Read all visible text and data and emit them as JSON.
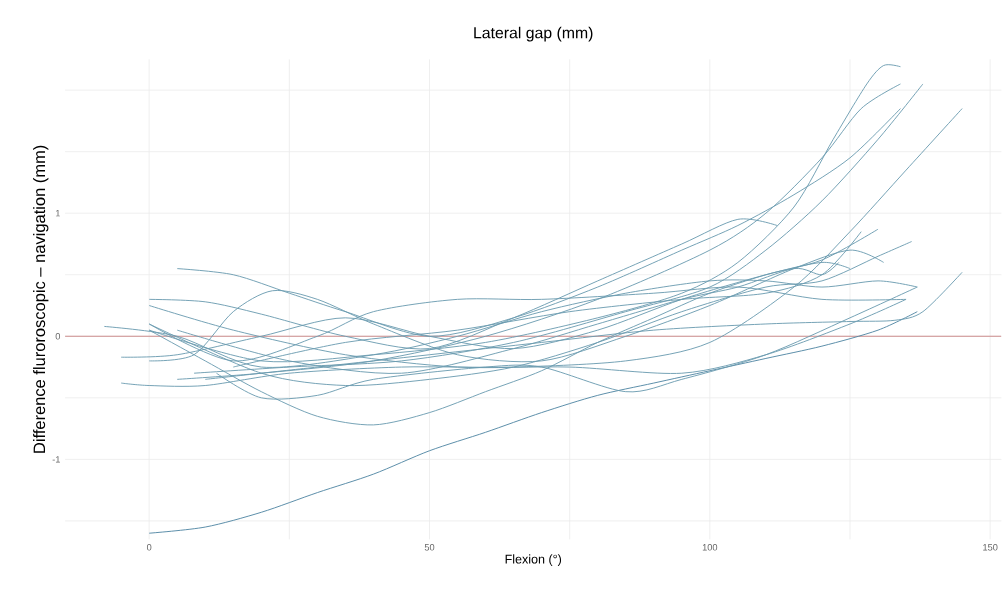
{
  "chart_data": {
    "type": "line",
    "title": "Lateral gap (mm)",
    "xlabel": "Flexion (°)",
    "ylabel": "Difference fluroroscopic – navigation  (mm)",
    "xlim": [
      -15,
      152
    ],
    "ylim": [
      -1.65,
      2.25
    ],
    "xticks": [
      0,
      {
        "value": 25,
        "label": null
      },
      50,
      {
        "value": 75,
        "label": null
      },
      100,
      {
        "value": 125,
        "label": null
      },
      150
    ],
    "yticks": [
      {
        "value": -1.5,
        "label": null
      },
      -1,
      {
        "value": -0.5,
        "label": null
      },
      0,
      {
        "value": 0.5,
        "label": null
      },
      1,
      {
        "value": 1.5,
        "label": null
      },
      {
        "value": 2,
        "label": null
      }
    ],
    "grid": true,
    "marker": "none",
    "line_style": "solid",
    "ref_lines": [
      {
        "axis": "y",
        "value": 0,
        "color": "#cc8c8c"
      }
    ],
    "series": [
      {
        "color": "#4f86a3",
        "x": [
          0,
          10,
          20,
          30,
          40,
          50,
          60,
          70,
          80,
          90,
          100,
          110,
          120,
          130,
          137
        ],
        "values": [
          -1.6,
          -1.55,
          -1.43,
          -1.27,
          -1.12,
          -0.93,
          -0.78,
          -0.62,
          -0.48,
          -0.38,
          -0.28,
          -0.18,
          -0.08,
          0.05,
          0.2
        ]
      },
      {
        "color": "#6a9bb0",
        "x": [
          0,
          20,
          40,
          60,
          80,
          95,
          105,
          115,
          122,
          128,
          131,
          134
        ],
        "values": [
          0.05,
          -0.2,
          -0.15,
          -0.05,
          0.15,
          0.35,
          0.6,
          1.05,
          1.6,
          2.05,
          2.2,
          2.19
        ]
      },
      {
        "color": "#6a9bb0",
        "x": [
          5,
          20,
          40,
          60,
          80,
          100,
          110,
          120,
          127,
          134
        ],
        "values": [
          -0.35,
          -0.3,
          -0.2,
          0,
          0.3,
          0.7,
          1.0,
          1.45,
          1.85,
          2.05
        ]
      },
      {
        "color": "#6a9bb0",
        "x": [
          8,
          25,
          45,
          65,
          85,
          100,
          110,
          120,
          130,
          138
        ],
        "values": [
          -0.3,
          -0.25,
          -0.2,
          -0.05,
          0.2,
          0.4,
          0.7,
          1.1,
          1.6,
          2.05
        ]
      },
      {
        "color": "#6a9bb0",
        "x": [
          -5,
          0,
          10,
          25,
          45,
          65,
          85,
          100,
          115,
          125,
          135,
          145
        ],
        "values": [
          -0.38,
          -0.4,
          -0.4,
          -0.3,
          -0.25,
          -0.25,
          -0.2,
          -0.05,
          0.4,
          0.85,
          1.35,
          1.85
        ]
      },
      {
        "color": "#6a9bb0",
        "x": [
          5,
          15,
          25,
          35,
          50,
          65,
          80,
          95,
          105,
          115,
          125,
          134
        ],
        "values": [
          0.55,
          0.5,
          0.35,
          0.2,
          0.0,
          0.15,
          0.4,
          0.7,
          0.9,
          1.15,
          1.45,
          1.85
        ]
      },
      {
        "color": "#6a9bb0",
        "x": [
          0,
          10,
          20,
          35,
          50,
          65,
          80,
          95,
          105,
          112
        ],
        "values": [
          0.3,
          0.28,
          0.18,
          0.0,
          -0.1,
          0.15,
          0.45,
          0.75,
          0.95,
          0.9
        ]
      },
      {
        "color": "#6a9bb0",
        "x": [
          0,
          8,
          15,
          22,
          30,
          40,
          55,
          70,
          85,
          100,
          115,
          125,
          131
        ],
        "values": [
          -0.2,
          -0.15,
          0.2,
          0.37,
          0.3,
          0.1,
          -0.15,
          -0.2,
          0.0,
          0.25,
          0.55,
          0.7,
          0.6
        ]
      },
      {
        "color": "#6a9bb0",
        "x": [
          0,
          20,
          35,
          50,
          65,
          80,
          95,
          110,
          120,
          130,
          136
        ],
        "values": [
          0.1,
          -0.3,
          -0.4,
          -0.35,
          -0.25,
          -0.05,
          0.2,
          0.4,
          0.45,
          0.65,
          0.77
        ]
      },
      {
        "color": "#6a9bb0",
        "x": [
          10,
          30,
          50,
          70,
          90,
          110,
          125,
          133,
          138,
          145
        ],
        "values": [
          -0.35,
          -0.25,
          -0.15,
          -0.05,
          0.05,
          0.1,
          0.12,
          0.13,
          0.2,
          0.52
        ]
      },
      {
        "color": "#6a9bb0",
        "x": [
          0,
          10,
          20,
          30,
          40,
          50,
          60,
          70,
          80,
          90,
          100,
          110,
          120,
          130
        ],
        "values": [
          0.05,
          -0.2,
          -0.45,
          -0.65,
          -0.72,
          -0.62,
          -0.45,
          -0.28,
          -0.05,
          0.15,
          0.35,
          0.5,
          0.62,
          0.87
        ]
      },
      {
        "color": "#6a9bb0",
        "x": [
          12,
          20,
          30,
          40,
          60,
          70,
          85,
          95,
          110,
          125,
          137
        ],
        "values": [
          -0.3,
          -0.5,
          -0.48,
          -0.35,
          -0.25,
          -0.25,
          -0.45,
          -0.35,
          -0.15,
          0.15,
          0.4
        ]
      },
      {
        "color": "#6a9bb0",
        "x": [
          -8,
          5,
          20,
          40,
          55,
          70,
          85,
          100,
          110,
          120,
          130,
          137
        ],
        "values": [
          0.08,
          0.0,
          -0.25,
          -0.15,
          0.0,
          0.2,
          0.35,
          0.45,
          0.45,
          0.4,
          0.45,
          0.4
        ]
      },
      {
        "color": "#6a9bb0",
        "x": [
          0,
          15,
          30,
          40,
          55,
          70,
          90,
          105,
          120,
          135
        ],
        "values": [
          0.1,
          -0.2,
          0.0,
          0.2,
          0.3,
          0.3,
          0.35,
          0.4,
          0.3,
          0.3
        ]
      },
      {
        "color": "#6a9bb0",
        "x": [
          5,
          25,
          45,
          65,
          80,
          95,
          105,
          115,
          120,
          123
        ],
        "values": [
          0.05,
          -0.2,
          -0.3,
          -0.1,
          0.1,
          0.3,
          0.4,
          0.55,
          0.5,
          0.6
        ]
      },
      {
        "color": "#6a9bb0",
        "x": [
          0,
          15,
          35,
          55,
          75,
          95,
          110,
          125,
          135
        ],
        "values": [
          0.25,
          0.05,
          -0.15,
          -0.25,
          -0.25,
          -0.3,
          -0.15,
          0.1,
          0.3
        ]
      },
      {
        "color": "#6a9bb0",
        "x": [
          15,
          35,
          55,
          75,
          95,
          110,
          120,
          127
        ],
        "values": [
          -0.25,
          -0.05,
          0.05,
          0.2,
          0.3,
          0.35,
          0.5,
          0.85
        ]
      },
      {
        "color": "#6a9bb0",
        "x": [
          -5,
          5,
          20,
          35,
          50,
          65,
          80,
          95,
          110,
          120,
          125
        ],
        "values": [
          -0.17,
          -0.15,
          0.0,
          0.15,
          0.0,
          -0.1,
          0.05,
          0.3,
          0.5,
          0.6,
          0.55
        ]
      }
    ]
  }
}
